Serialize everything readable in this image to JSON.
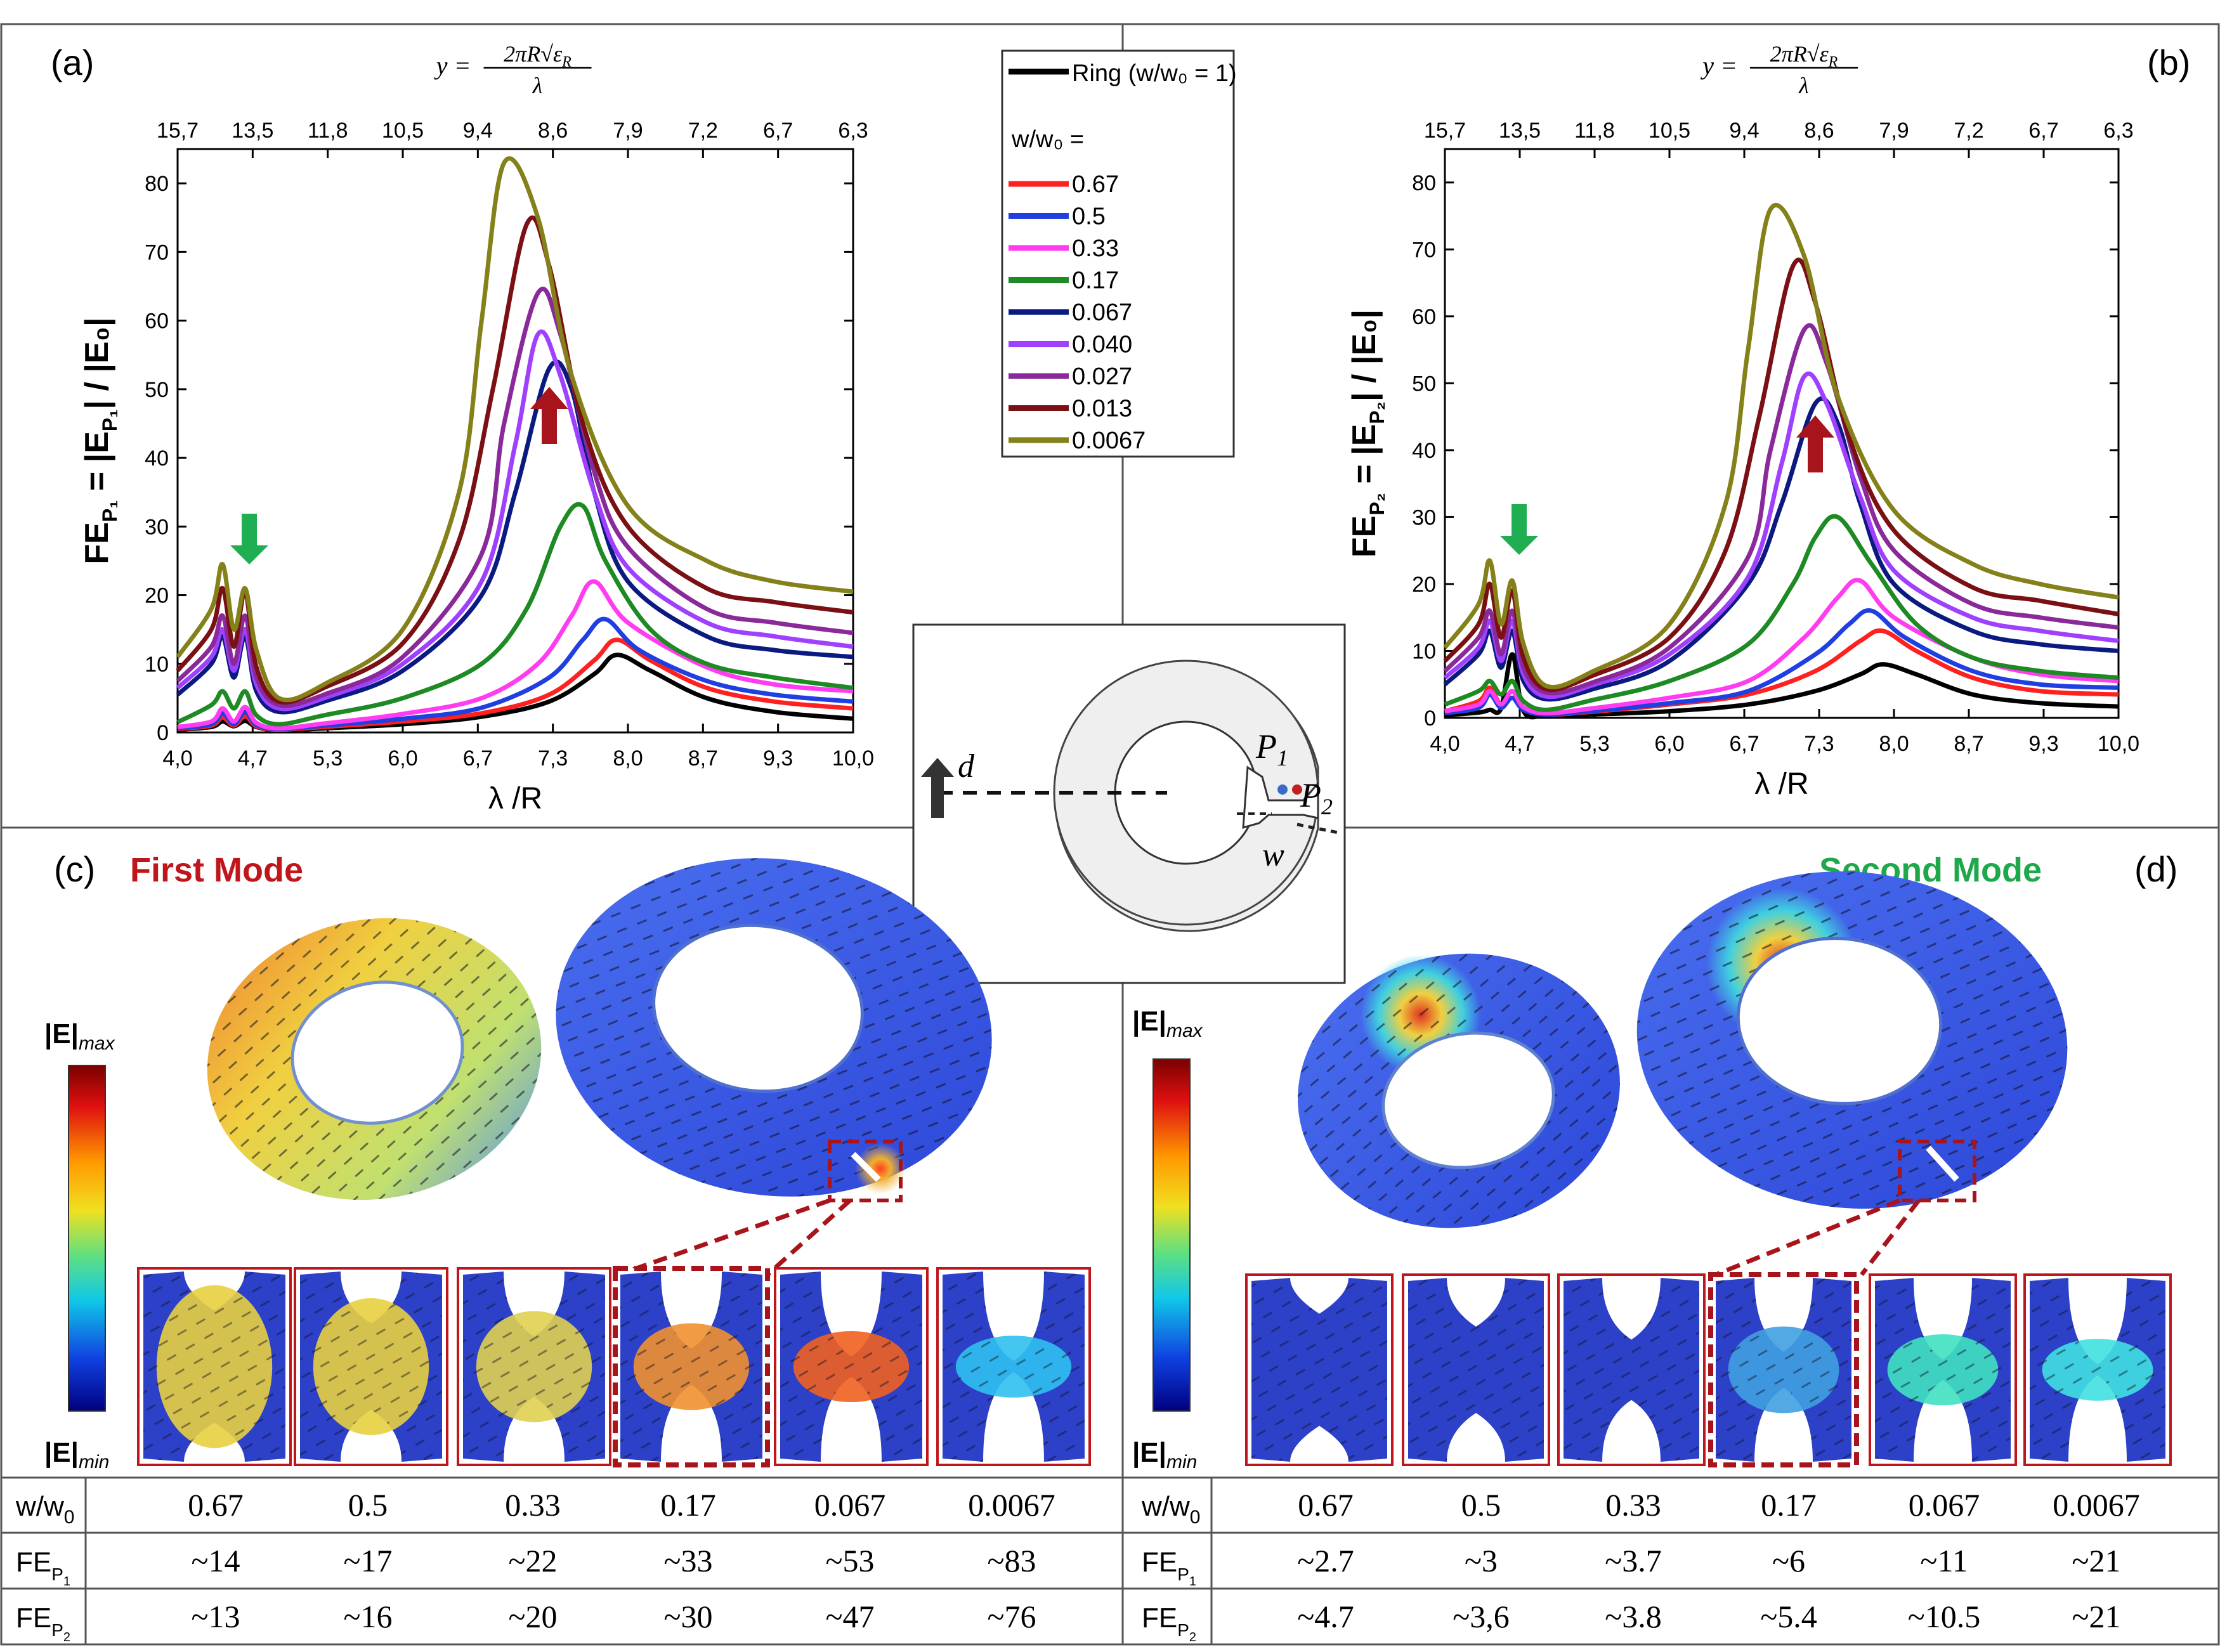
{
  "panel_labels": {
    "a": "(a)",
    "b": "(b)",
    "c": "(c)",
    "d": "(d)"
  },
  "top_axis_formula": {
    "lhs": "y =",
    "numerator": "2πR√ε",
    "numerator_sub": "R",
    "denominator": "λ"
  },
  "mode_titles": {
    "first": "First Mode",
    "second": "Second Mode"
  },
  "colors": {
    "first_mode": "#c0161b",
    "second_mode": "#1fa84a",
    "arrow_red": "#a8141b",
    "arrow_green": "#1fae52",
    "dashed_box": "#a8141b"
  },
  "legend": {
    "ring_label": "Ring (w/w₀ = 1)",
    "header": "w/w₀ =",
    "entries": [
      {
        "label": "0.67",
        "color": "#ff2020"
      },
      {
        "label": "0.5",
        "color": "#1f3fe0"
      },
      {
        "label": "0.33",
        "color": "#ff3cf0"
      },
      {
        "label": "0.17",
        "color": "#1e8a24"
      },
      {
        "label": "0.067",
        "color": "#0b1a80"
      },
      {
        "label": "0.040",
        "color": "#a040ff"
      },
      {
        "label": "0.027",
        "color": "#8a2a9a"
      },
      {
        "label": "0.013",
        "color": "#7a0f14"
      },
      {
        "label": "0.0067",
        "color": "#84801a"
      }
    ]
  },
  "chart_data": [
    {
      "type": "line",
      "panel": "(a)",
      "xlabel": "λ /R",
      "ylabel": "FE",
      "ylabel_sub": "P₁",
      "ylabel_rest": " = |E",
      "ylabel_sub2": "P₁",
      "ylabel_end": "| / |E₀|",
      "xlim": [
        4.0,
        10.0
      ],
      "ylim": [
        0,
        85
      ],
      "x_ticks": [
        "4,0",
        "4,7",
        "5,3",
        "6,0",
        "6,7",
        "7,3",
        "8,0",
        "8,7",
        "9,3",
        "10,0"
      ],
      "y_ticks": [
        "0",
        "10",
        "20",
        "30",
        "40",
        "50",
        "60",
        "70",
        "80"
      ],
      "top_ticks": [
        "15,7",
        "13,5",
        "11,8",
        "10,5",
        "9,4",
        "8,6",
        "7,9",
        "7,2",
        "6,7",
        "6,3"
      ],
      "series": [
        {
          "name": "Ring (w/w₀ = 1)",
          "color": "#000000",
          "x": [
            4.0,
            4.3,
            4.4,
            4.5,
            4.6,
            4.7,
            4.9,
            5.3,
            6.0,
            6.7,
            7.3,
            7.7,
            7.9,
            8.2,
            8.7,
            9.3,
            10.0
          ],
          "y": [
            0.4,
            0.8,
            1.6,
            0.9,
            1.7,
            0.8,
            0.3,
            0.6,
            1.2,
            2.3,
            4.5,
            8.5,
            11.3,
            9.0,
            5.0,
            3.0,
            2.0
          ]
        },
        {
          "name": "0.67",
          "color": "#ff2020",
          "x": [
            4.0,
            4.3,
            4.4,
            4.5,
            4.6,
            4.7,
            4.9,
            5.3,
            6.0,
            6.7,
            7.3,
            7.7,
            7.9,
            8.2,
            8.7,
            9.3,
            10.0
          ],
          "y": [
            0.5,
            1.0,
            2.2,
            1.0,
            2.4,
            0.9,
            0.4,
            0.8,
            1.6,
            2.8,
            5.5,
            10.5,
            13.5,
            10.5,
            6.5,
            4.5,
            3.5
          ]
        },
        {
          "name": "0.5",
          "color": "#1f3fe0",
          "x": [
            4.0,
            4.3,
            4.4,
            4.5,
            4.6,
            4.7,
            4.9,
            5.3,
            6.0,
            6.7,
            7.3,
            7.6,
            7.8,
            8.1,
            8.7,
            9.3,
            10.0
          ],
          "y": [
            0.6,
            1.2,
            2.8,
            1.2,
            3.0,
            1.1,
            0.5,
            1.0,
            2.0,
            3.6,
            8.0,
            13.5,
            16.5,
            12.0,
            7.5,
            5.5,
            4.5
          ]
        },
        {
          "name": "0.33",
          "color": "#ff3cf0",
          "x": [
            4.0,
            4.3,
            4.4,
            4.5,
            4.6,
            4.7,
            4.9,
            5.3,
            6.0,
            6.7,
            7.2,
            7.5,
            7.7,
            8.0,
            8.7,
            9.3,
            10.0
          ],
          "y": [
            0.8,
            1.6,
            3.5,
            1.6,
            3.7,
            1.4,
            0.6,
            1.3,
            2.7,
            5.0,
            10.0,
            17.0,
            22.0,
            16.0,
            9.5,
            7.0,
            6.0
          ]
        },
        {
          "name": "0.17",
          "color": "#1e8a24",
          "x": [
            4.0,
            4.3,
            4.4,
            4.5,
            4.6,
            4.7,
            4.9,
            5.3,
            6.0,
            6.7,
            7.1,
            7.4,
            7.6,
            7.8,
            8.2,
            8.7,
            9.3,
            10.0
          ],
          "y": [
            1.5,
            4.0,
            6.0,
            3.5,
            6.0,
            2.5,
            1.2,
            2.5,
            5.0,
            10.0,
            18.0,
            30.0,
            33.0,
            25.0,
            15.0,
            10.0,
            8.0,
            6.5
          ]
        },
        {
          "name": "0.067",
          "color": "#0b1a80",
          "x": [
            4.0,
            4.3,
            4.4,
            4.5,
            4.6,
            4.7,
            4.9,
            5.3,
            6.0,
            6.7,
            7.0,
            7.3,
            7.5,
            7.7,
            8.0,
            8.7,
            9.3,
            10.0
          ],
          "y": [
            5.5,
            10.0,
            14.0,
            8.0,
            14.0,
            6.0,
            3.0,
            4.5,
            9.0,
            20.0,
            35.0,
            53.0,
            50.0,
            35.0,
            22.0,
            14.0,
            12.0,
            11.0
          ]
        },
        {
          "name": "0.040",
          "color": "#a040ff",
          "x": [
            4.0,
            4.3,
            4.4,
            4.5,
            4.6,
            4.7,
            4.9,
            5.3,
            6.0,
            6.7,
            7.0,
            7.2,
            7.4,
            7.7,
            8.0,
            8.7,
            9.3,
            10.0
          ],
          "y": [
            6.5,
            11.0,
            15.0,
            9.0,
            15.0,
            7.0,
            3.5,
            5.0,
            10.0,
            22.0,
            42.0,
            58.0,
            52.0,
            35.0,
            24.0,
            16.0,
            14.0,
            12.5
          ]
        },
        {
          "name": "0.027",
          "color": "#8a2a9a",
          "x": [
            4.0,
            4.3,
            4.4,
            4.5,
            4.6,
            4.7,
            4.9,
            5.3,
            6.0,
            6.7,
            6.9,
            7.2,
            7.4,
            7.7,
            8.0,
            8.7,
            9.3,
            10.0
          ],
          "y": [
            7.5,
            12.5,
            17.0,
            10.0,
            17.0,
            8.0,
            4.0,
            5.5,
            11.0,
            26.0,
            45.0,
            64.0,
            58.0,
            38.0,
            27.0,
            18.0,
            16.0,
            14.5
          ]
        },
        {
          "name": "0.013",
          "color": "#7a0f14",
          "x": [
            4.0,
            4.3,
            4.4,
            4.5,
            4.6,
            4.7,
            4.9,
            5.3,
            6.0,
            6.5,
            6.8,
            7.1,
            7.3,
            7.6,
            8.0,
            8.7,
            9.3,
            10.0
          ],
          "y": [
            9.0,
            15.0,
            21.0,
            12.5,
            20.5,
            9.5,
            4.5,
            6.5,
            13.0,
            28.0,
            50.0,
            74.0,
            68.0,
            45.0,
            30.0,
            21.0,
            19.0,
            17.5
          ]
        },
        {
          "name": "0.0067",
          "color": "#84801a",
          "x": [
            4.0,
            4.3,
            4.4,
            4.5,
            4.6,
            4.7,
            4.9,
            5.3,
            6.0,
            6.5,
            6.7,
            6.9,
            7.2,
            7.5,
            8.0,
            8.7,
            9.3,
            10.0
          ],
          "y": [
            11.0,
            18.0,
            24.5,
            15.0,
            21.0,
            12.0,
            5.0,
            7.0,
            15.0,
            35.0,
            60.0,
            83.0,
            75.0,
            52.0,
            33.0,
            25.0,
            22.0,
            20.5
          ]
        }
      ]
    },
    {
      "type": "line",
      "panel": "(b)",
      "xlabel": "λ /R",
      "ylabel": "FE",
      "ylabel_sub": "P₂",
      "ylabel_rest": " = |E",
      "ylabel_sub2": "P₂",
      "ylabel_end": "| / |E₀|",
      "xlim": [
        4.0,
        10.0
      ],
      "ylim": [
        0,
        85
      ],
      "x_ticks": [
        "4,0",
        "4,7",
        "5,3",
        "6,0",
        "6,7",
        "7,3",
        "8,0",
        "8,7",
        "9,3",
        "10,0"
      ],
      "y_ticks": [
        "0",
        "10",
        "20",
        "30",
        "40",
        "50",
        "60",
        "70",
        "80"
      ],
      "top_ticks": [
        "15,7",
        "13,5",
        "11,8",
        "10,5",
        "9,4",
        "8,6",
        "7,9",
        "7,2",
        "6,7",
        "6,3"
      ],
      "series": [
        {
          "name": "Ring (w/w₀ = 1)",
          "color": "#000000",
          "x": [
            4.0,
            4.3,
            4.4,
            4.5,
            4.6,
            4.7,
            4.9,
            5.3,
            6.0,
            6.7,
            7.3,
            7.7,
            7.9,
            8.2,
            8.7,
            9.3,
            10.0
          ],
          "y": [
            0.4,
            0.8,
            1.2,
            1.4,
            9.5,
            1.0,
            0.3,
            0.5,
            1.0,
            2.0,
            4.0,
            6.5,
            8.0,
            6.5,
            3.5,
            2.2,
            1.7
          ]
        },
        {
          "name": "0.67",
          "color": "#ff2020",
          "x": [
            4.0,
            4.3,
            4.4,
            4.5,
            4.6,
            4.7,
            4.9,
            5.3,
            6.0,
            6.7,
            7.3,
            7.7,
            7.9,
            8.2,
            8.7,
            9.3,
            10.0
          ],
          "y": [
            1.0,
            2.5,
            4.5,
            2.0,
            4.0,
            1.5,
            0.5,
            0.9,
            2.0,
            3.5,
            7.0,
            11.5,
            13.0,
            10.0,
            6.0,
            4.0,
            3.5
          ]
        },
        {
          "name": "0.5",
          "color": "#1f3fe0",
          "x": [
            4.0,
            4.3,
            4.4,
            4.5,
            4.6,
            4.7,
            4.9,
            5.3,
            6.0,
            6.7,
            7.3,
            7.6,
            7.8,
            8.1,
            8.7,
            9.3,
            10.0
          ],
          "y": [
            0.7,
            1.5,
            3.5,
            1.5,
            3.0,
            1.2,
            0.5,
            1.0,
            2.2,
            4.0,
            9.5,
            14.0,
            16.0,
            12.0,
            7.0,
            5.0,
            4.5
          ]
        },
        {
          "name": "0.33",
          "color": "#ff3cf0",
          "x": [
            4.0,
            4.3,
            4.4,
            4.5,
            4.6,
            4.7,
            4.9,
            5.3,
            6.0,
            6.7,
            7.2,
            7.5,
            7.7,
            8.0,
            8.7,
            9.3,
            10.0
          ],
          "y": [
            1.0,
            2.0,
            4.0,
            2.0,
            4.0,
            1.6,
            0.7,
            1.4,
            3.0,
            5.5,
            12.0,
            18.0,
            20.5,
            15.0,
            9.0,
            6.5,
            5.5
          ]
        },
        {
          "name": "0.17",
          "color": "#1e8a24",
          "x": [
            4.0,
            4.3,
            4.4,
            4.5,
            4.6,
            4.7,
            4.9,
            5.3,
            6.0,
            6.7,
            7.1,
            7.3,
            7.5,
            7.8,
            8.2,
            8.7,
            9.3,
            10.0
          ],
          "y": [
            2.0,
            4.0,
            5.5,
            3.5,
            5.5,
            2.5,
            1.2,
            2.6,
            5.5,
            11.0,
            20.0,
            27.0,
            30.0,
            23.0,
            14.0,
            9.0,
            7.0,
            6.0
          ]
        },
        {
          "name": "0.067",
          "color": "#0b1a80",
          "x": [
            4.0,
            4.3,
            4.4,
            4.5,
            4.6,
            4.7,
            4.9,
            5.3,
            6.0,
            6.7,
            7.0,
            7.3,
            7.5,
            7.7,
            8.0,
            8.7,
            9.3,
            10.0
          ],
          "y": [
            5.0,
            9.5,
            13.0,
            7.5,
            13.0,
            5.5,
            2.8,
            4.2,
            8.5,
            20.0,
            32.0,
            47.0,
            44.0,
            32.0,
            20.0,
            13.0,
            11.0,
            10.0
          ]
        },
        {
          "name": "0.040",
          "color": "#a040ff",
          "x": [
            4.0,
            4.3,
            4.4,
            4.5,
            4.6,
            4.7,
            4.9,
            5.3,
            6.0,
            6.7,
            7.0,
            7.2,
            7.4,
            7.7,
            8.0,
            8.7,
            9.3,
            10.0
          ],
          "y": [
            6.0,
            10.5,
            14.5,
            8.5,
            14.5,
            6.5,
            3.2,
            4.8,
            9.5,
            21.0,
            38.0,
            51.0,
            47.0,
            33.0,
            22.0,
            15.0,
            13.0,
            11.5
          ]
        },
        {
          "name": "0.027",
          "color": "#8a2a9a",
          "x": [
            4.0,
            4.3,
            4.4,
            4.5,
            4.6,
            4.7,
            4.9,
            5.3,
            6.0,
            6.7,
            6.9,
            7.2,
            7.4,
            7.7,
            8.0,
            8.7,
            9.3,
            10.0
          ],
          "y": [
            7.0,
            12.0,
            16.0,
            9.5,
            16.0,
            7.5,
            3.8,
            5.2,
            10.5,
            24.0,
            40.0,
            58.0,
            53.0,
            36.0,
            25.0,
            17.0,
            15.0,
            13.5
          ]
        },
        {
          "name": "0.013",
          "color": "#7a0f14",
          "x": [
            4.0,
            4.3,
            4.4,
            4.5,
            4.6,
            4.7,
            4.9,
            5.3,
            6.0,
            6.5,
            6.8,
            7.1,
            7.3,
            7.6,
            8.0,
            8.7,
            9.3,
            10.0
          ],
          "y": [
            8.5,
            14.0,
            20.0,
            12.0,
            19.0,
            9.0,
            4.3,
            6.2,
            12.0,
            25.0,
            45.0,
            67.5,
            62.0,
            42.0,
            28.0,
            19.5,
            17.5,
            15.5
          ]
        },
        {
          "name": "0.0067",
          "color": "#84801a",
          "x": [
            4.0,
            4.3,
            4.4,
            4.5,
            4.6,
            4.7,
            4.9,
            5.3,
            6.0,
            6.5,
            6.7,
            6.9,
            7.2,
            7.5,
            8.0,
            8.7,
            9.3,
            10.0
          ],
          "y": [
            10.5,
            17.0,
            23.5,
            14.0,
            20.5,
            11.0,
            4.8,
            6.8,
            14.0,
            32.0,
            55.0,
            76.0,
            69.0,
            48.0,
            31.0,
            23.0,
            20.0,
            18.0
          ]
        }
      ]
    }
  ],
  "schematic": {
    "d_label": "d",
    "w_label": "w",
    "p1_label": "P",
    "p1_sub": "1",
    "p2_label": "P",
    "p2_sub": "2"
  },
  "colorbar": {
    "max_label": "|E|",
    "max_sub": "max",
    "min_label": "|E|",
    "min_sub": "min"
  },
  "table_left": {
    "row_labels": [
      "w/w₀",
      "FE_P1",
      "FE_P2"
    ],
    "w": [
      "0.67",
      "0.5",
      "0.33",
      "0.17",
      "0.067",
      "0.0067"
    ],
    "fe_p1": [
      "~14",
      "~17",
      "~22",
      "~33",
      "~53",
      "~83"
    ],
    "fe_p2": [
      "~13",
      "~16",
      "~20",
      "~30",
      "~47",
      "~76"
    ]
  },
  "table_right": {
    "row_labels": [
      "w/w₀",
      "FE_P1",
      "FE_P2"
    ],
    "w": [
      "0.67",
      "0.5",
      "0.33",
      "0.17",
      "0.067",
      "0.0067"
    ],
    "fe_p1": [
      "~2.7",
      "~3",
      "~3.7",
      "~6",
      "~11",
      "~21"
    ],
    "fe_p2": [
      "~4.7",
      "~3,6",
      "~3.8",
      "~5.4",
      "~10.5",
      "~21"
    ]
  }
}
